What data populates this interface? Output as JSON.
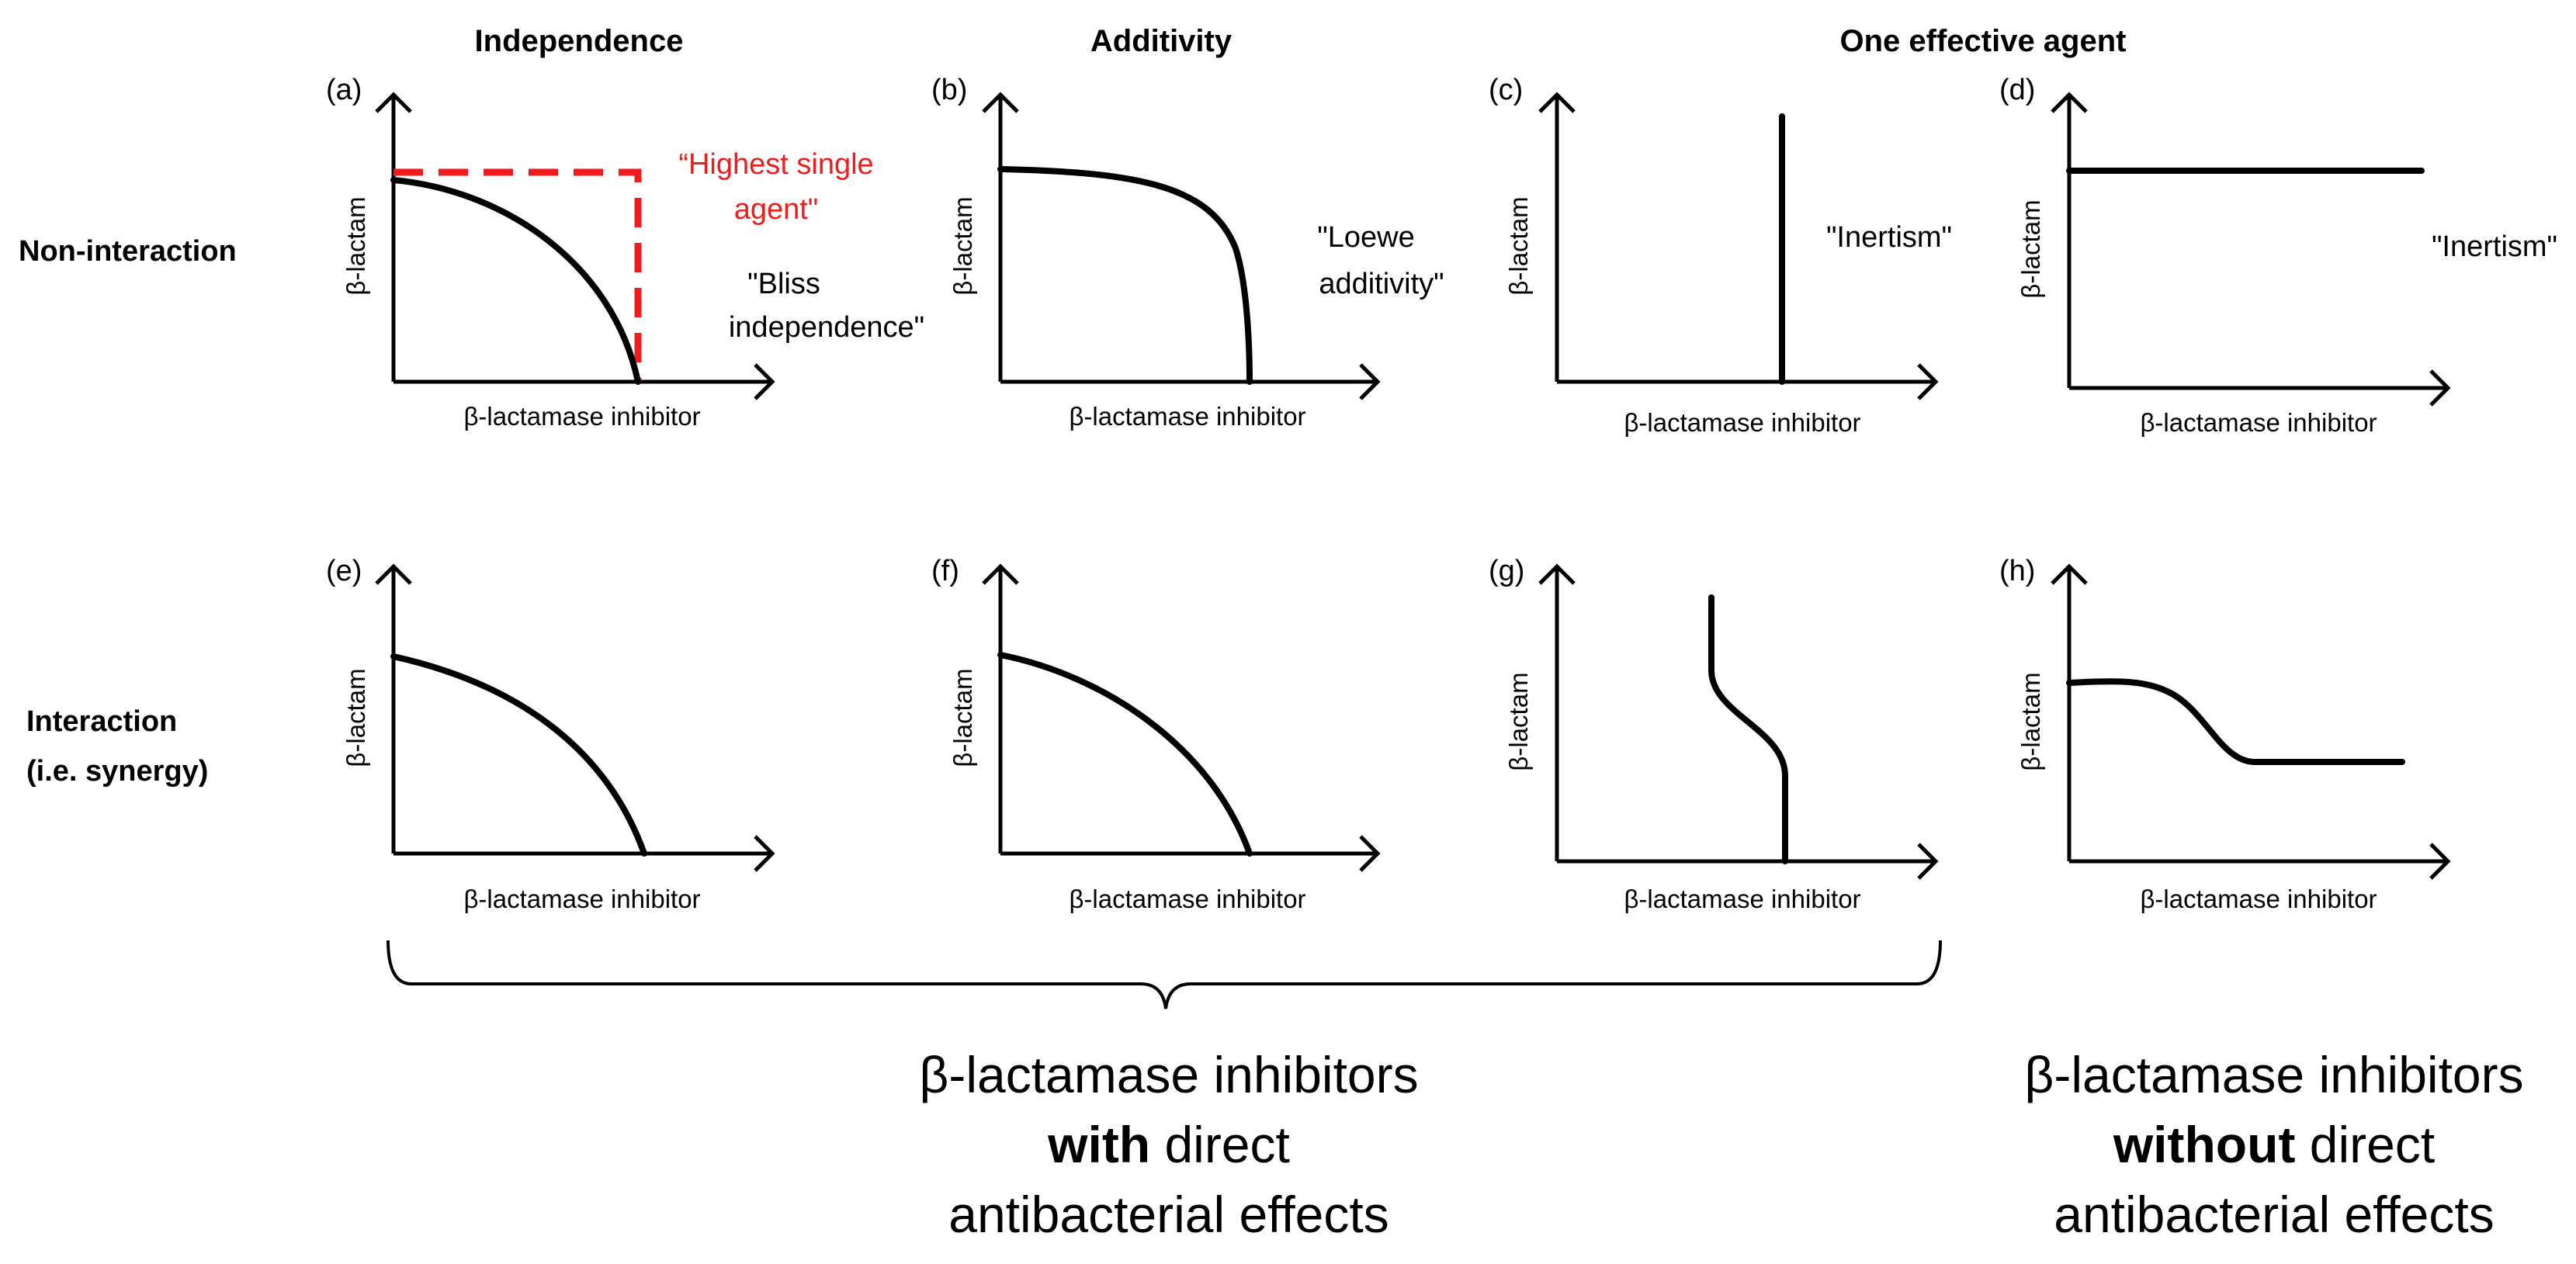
{
  "columns": {
    "independence": "Independence",
    "additivity": "Additivity",
    "one_effective": "One effective agent"
  },
  "rows": {
    "non_interaction": "Non-interaction",
    "interaction_line1": "Interaction",
    "interaction_line2": "(i.e. synergy)"
  },
  "axes": {
    "y_label": "β-lactam",
    "x_label": "β-lactamase inhibitor"
  },
  "panels": [
    {
      "id": "a",
      "label": "(a)",
      "shape": "convex-quarter-curve with highest-single-agent box",
      "annotations": [
        "\"Bliss",
        "independence\""
      ],
      "red_annotations": [
        "“Highest single",
        "agent\""
      ]
    },
    {
      "id": "b",
      "label": "(b)",
      "shape": "flat then steep drop",
      "annotations": [
        "\"Loewe",
        "additivity\""
      ]
    },
    {
      "id": "c",
      "label": "(c)",
      "shape": "vertical line",
      "annotations": [
        "\"Inertism\""
      ]
    },
    {
      "id": "d",
      "label": "(d)",
      "shape": "horizontal line",
      "annotations": [
        "\"Inertism\""
      ]
    },
    {
      "id": "e",
      "label": "(e)",
      "shape": "convex-quarter-curve",
      "annotations": []
    },
    {
      "id": "f",
      "label": "(f)",
      "shape": "convex-quarter-curve",
      "annotations": []
    },
    {
      "id": "g",
      "label": "(g)",
      "shape": "vertical S-shift",
      "annotations": []
    },
    {
      "id": "h",
      "label": "(h)",
      "shape": "horizontal step down",
      "annotations": []
    }
  ],
  "footer": {
    "left_line1": "β-lactamase inhibitors",
    "left_bold": "with",
    "left_after_bold": " direct",
    "left_line3": "antibacterial effects",
    "right_line1": "β-lactamase inhibitors",
    "right_bold": "without",
    "right_after_bold": " direct",
    "right_line3": "antibacterial effects"
  }
}
